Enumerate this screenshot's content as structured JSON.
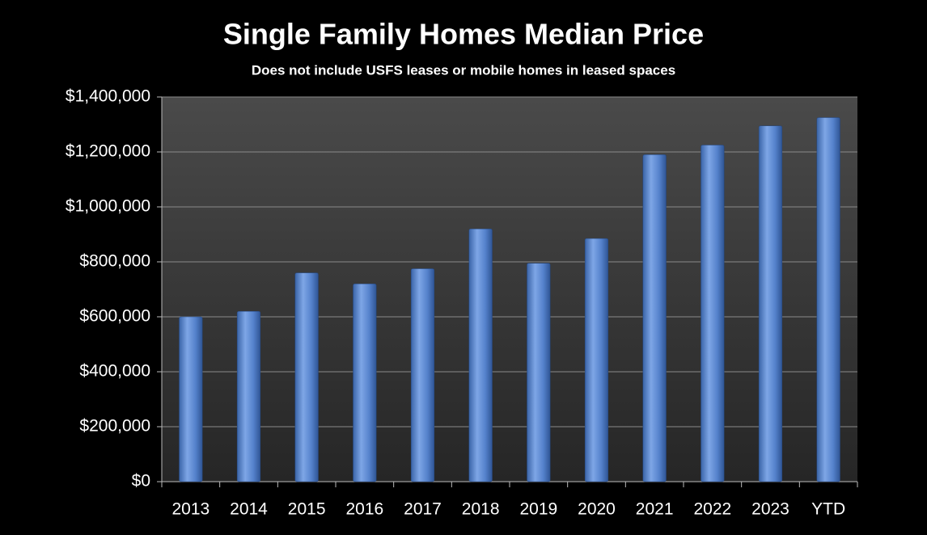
{
  "chart_data": {
    "type": "bar",
    "title": "Single Family Homes Median Price",
    "subtitle": "Does not include USFS leases or mobile homes in leased spaces",
    "categories": [
      "2013",
      "2014",
      "2015",
      "2016",
      "2017",
      "2018",
      "2019",
      "2020",
      "2021",
      "2022",
      "2023",
      "YTD"
    ],
    "values": [
      600000,
      620000,
      760000,
      720000,
      775000,
      920000,
      795000,
      885000,
      1190000,
      1225000,
      1295000,
      1325000
    ],
    "color": "#4f81bd",
    "ylim": [
      0,
      1400000
    ],
    "yticks": [
      {
        "value": 0,
        "label": "$0"
      },
      {
        "value": 200000,
        "label": "$200,000"
      },
      {
        "value": 400000,
        "label": "$400,000"
      },
      {
        "value": 600000,
        "label": "$600,000"
      },
      {
        "value": 800000,
        "label": "$800,000"
      },
      {
        "value": 1000000,
        "label": "$1,000,000"
      },
      {
        "value": 1200000,
        "label": "$1,200,000"
      },
      {
        "value": 1400000,
        "label": "$1,400,000"
      }
    ],
    "grid": true
  }
}
